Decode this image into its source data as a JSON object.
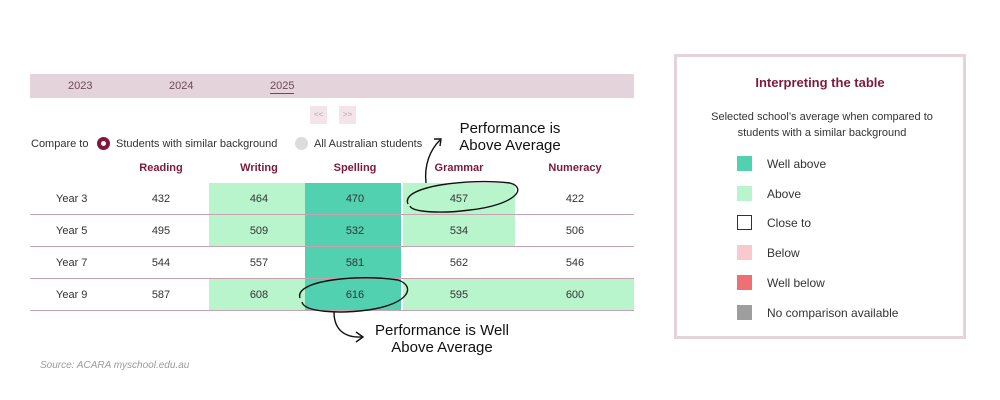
{
  "tabs": [
    "2023",
    "2024",
    "2025"
  ],
  "selected_tab": "2025",
  "pager": {
    "prev": "<<",
    "next": ">>"
  },
  "compare": {
    "label": "Compare to",
    "option_similar": "Students with similar background",
    "option_all": "All Australian students",
    "selected": "Students with similar background"
  },
  "table": {
    "columns": [
      "Reading",
      "Writing",
      "Spelling",
      "Grammar",
      "Numeracy"
    ],
    "rows": [
      {
        "label": "Year 3",
        "values": [
          "432",
          "464",
          "470",
          "457",
          "422"
        ],
        "levels": [
          "close",
          "above",
          "well_above",
          "above",
          "close"
        ]
      },
      {
        "label": "Year 5",
        "values": [
          "495",
          "509",
          "532",
          "534",
          "506"
        ],
        "levels": [
          "close",
          "above",
          "well_above",
          "above",
          "close"
        ]
      },
      {
        "label": "Year 7",
        "values": [
          "544",
          "557",
          "581",
          "562",
          "546"
        ],
        "levels": [
          "close",
          "close",
          "well_above",
          "close",
          "close"
        ]
      },
      {
        "label": "Year 9",
        "values": [
          "587",
          "608",
          "616",
          "595",
          "600"
        ],
        "levels": [
          "close",
          "above",
          "well_above",
          "above",
          "above"
        ]
      }
    ]
  },
  "annotations": {
    "top_line1": "Performance is",
    "top_line2": "Above Average",
    "bottom_line1": "Performance is Well",
    "bottom_line2": "Above Average"
  },
  "source": "Source: ACARA myschool.edu.au",
  "legend": {
    "title": "Interpreting the table",
    "description": "Selected school’s average when compared to students with a similar background",
    "items": [
      {
        "label": "Well above",
        "color": "#52d1b0",
        "outline": false
      },
      {
        "label": "Above",
        "color": "#b8f5cc",
        "outline": false
      },
      {
        "label": "Close to",
        "color": "#ffffff",
        "outline": true
      },
      {
        "label": "Below",
        "color": "#f9c9cd",
        "outline": false
      },
      {
        "label": "Well below",
        "color": "#ef7074",
        "outline": false
      },
      {
        "label": "No comparison available",
        "color": "#9e9e9e",
        "outline": false
      }
    ]
  },
  "colors": {
    "accent": "#7d1a3a",
    "well_above": "#52d1b0",
    "above": "#b8f5cc",
    "tab_bar": "#e4d3da"
  }
}
